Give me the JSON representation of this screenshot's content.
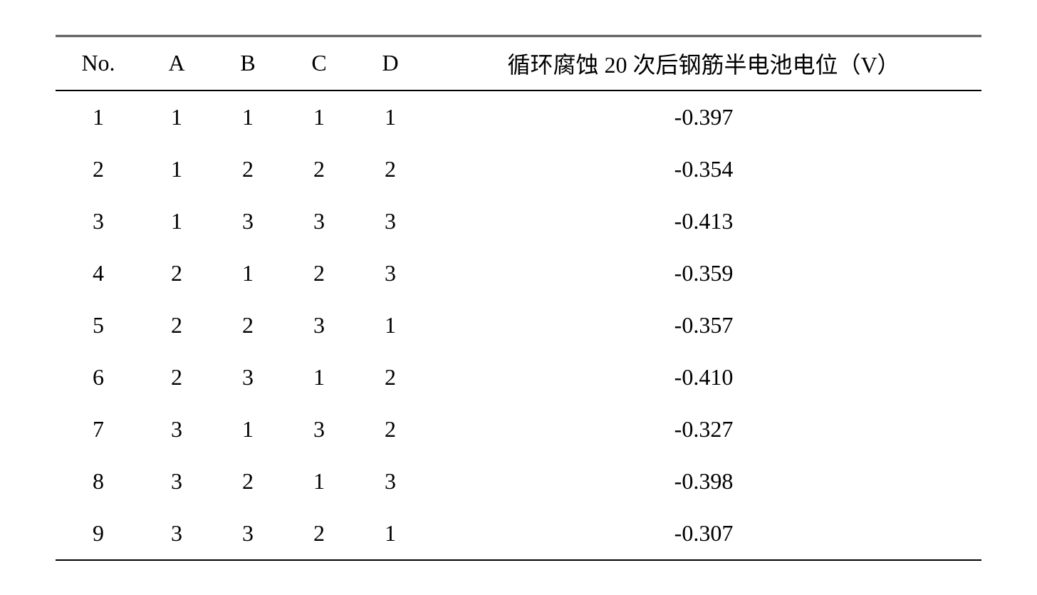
{
  "table": {
    "background_color": "#ffffff",
    "text_color": "#000000",
    "border_color": "#000000",
    "font_family": "Times New Roman, SimSun, serif",
    "font_size": 32,
    "top_border_style": "double",
    "header_border_width": 2,
    "columns": {
      "no": "No.",
      "a": "A",
      "b": "B",
      "c": "C",
      "d": "D",
      "result": "循环腐蚀 20 次后钢筋半电池电位（V）"
    },
    "column_widths": {
      "no": 120,
      "factor": 100,
      "result": 780
    },
    "rows": [
      {
        "no": "1",
        "a": "1",
        "b": "1",
        "c": "1",
        "d": "1",
        "result": "-0.397"
      },
      {
        "no": "2",
        "a": "1",
        "b": "2",
        "c": "2",
        "d": "2",
        "result": "-0.354"
      },
      {
        "no": "3",
        "a": "1",
        "b": "3",
        "c": "3",
        "d": "3",
        "result": "-0.413"
      },
      {
        "no": "4",
        "a": "2",
        "b": "1",
        "c": "2",
        "d": "3",
        "result": "-0.359"
      },
      {
        "no": "5",
        "a": "2",
        "b": "2",
        "c": "3",
        "d": "1",
        "result": "-0.357"
      },
      {
        "no": "6",
        "a": "2",
        "b": "3",
        "c": "1",
        "d": "2",
        "result": "-0.410"
      },
      {
        "no": "7",
        "a": "3",
        "b": "1",
        "c": "3",
        "d": "2",
        "result": "-0.327"
      },
      {
        "no": "8",
        "a": "3",
        "b": "2",
        "c": "1",
        "d": "3",
        "result": "-0.398"
      },
      {
        "no": "9",
        "a": "3",
        "b": "3",
        "c": "2",
        "d": "1",
        "result": "-0.307"
      }
    ]
  }
}
